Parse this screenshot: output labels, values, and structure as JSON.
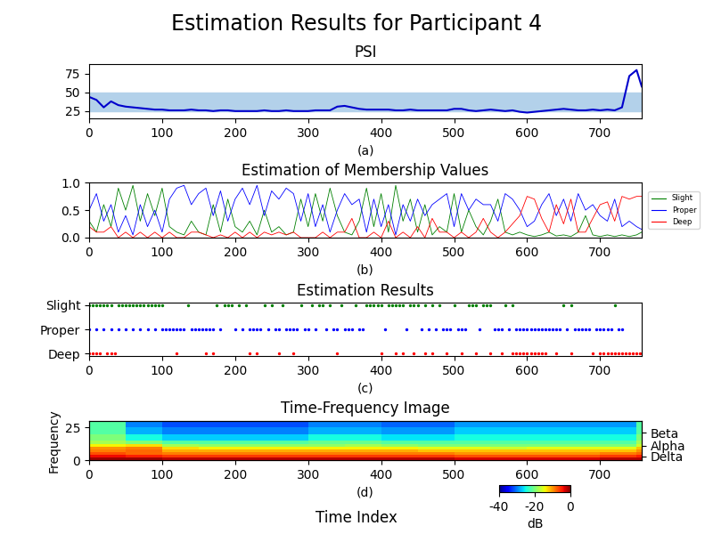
{
  "title": "Estimation Results for Participant 4",
  "xlabel": "Time Index",
  "chart_data": [
    {
      "type": "line",
      "title": "PSI",
      "xlabel": "(a)",
      "x": [
        0,
        10,
        20,
        30,
        40,
        50,
        60,
        70,
        80,
        90,
        100,
        110,
        120,
        130,
        140,
        150,
        160,
        170,
        180,
        190,
        200,
        210,
        220,
        230,
        240,
        250,
        260,
        270,
        280,
        290,
        300,
        310,
        320,
        330,
        340,
        350,
        360,
        370,
        380,
        390,
        400,
        410,
        420,
        430,
        440,
        450,
        460,
        470,
        480,
        490,
        500,
        510,
        520,
        530,
        540,
        550,
        560,
        570,
        580,
        590,
        600,
        610,
        620,
        630,
        640,
        650,
        660,
        670,
        680,
        690,
        700,
        710,
        720,
        730,
        740,
        750,
        757
      ],
      "values": [
        44,
        40,
        30,
        38,
        33,
        31,
        30,
        29,
        28,
        27,
        27,
        26,
        26,
        26,
        27,
        26,
        26,
        25,
        26,
        26,
        25,
        25,
        25,
        25,
        26,
        25,
        25,
        26,
        25,
        25,
        25,
        26,
        26,
        26,
        31,
        32,
        30,
        28,
        27,
        27,
        27,
        27,
        26,
        26,
        27,
        26,
        26,
        26,
        26,
        26,
        28,
        28,
        26,
        25,
        26,
        27,
        26,
        25,
        26,
        24,
        23,
        24,
        25,
        26,
        27,
        28,
        27,
        26,
        26,
        27,
        26,
        27,
        26,
        30,
        72,
        80,
        58
      ],
      "color": "#0000cc",
      "band": [
        25,
        50
      ],
      "xlim": [
        0,
        757
      ],
      "xticks": [
        0,
        100,
        200,
        300,
        400,
        500,
        600,
        700
      ],
      "ylim": [
        15,
        88
      ],
      "yticks": [
        25,
        50,
        75
      ]
    },
    {
      "type": "line",
      "title": "Estimation of Membership Values",
      "xlabel": "(b)",
      "x": [
        0,
        10,
        20,
        30,
        40,
        50,
        60,
        70,
        80,
        90,
        100,
        110,
        120,
        130,
        140,
        150,
        160,
        170,
        180,
        190,
        200,
        210,
        220,
        230,
        240,
        250,
        260,
        270,
        280,
        290,
        300,
        310,
        320,
        330,
        340,
        350,
        360,
        370,
        380,
        390,
        400,
        410,
        420,
        430,
        440,
        450,
        460,
        470,
        480,
        490,
        500,
        510,
        520,
        530,
        540,
        550,
        560,
        570,
        580,
        590,
        600,
        610,
        620,
        630,
        640,
        650,
        660,
        670,
        680,
        690,
        700,
        710,
        720,
        730,
        740,
        750,
        757
      ],
      "series": [
        {
          "name": "Slight",
          "color": "green",
          "values": [
            0.3,
            0.1,
            0.6,
            0.2,
            0.9,
            0.5,
            0.95,
            0.3,
            0.8,
            0.4,
            0.9,
            0.2,
            0.1,
            0.05,
            0.3,
            0.1,
            0.05,
            0.6,
            0.1,
            0.7,
            0.2,
            0.1,
            0.3,
            0.05,
            0.5,
            0.1,
            0.2,
            0.05,
            0.1,
            0.7,
            0.2,
            0.8,
            0.3,
            0.9,
            0.4,
            0.1,
            0.05,
            0.3,
            0.9,
            0.2,
            0.8,
            0.1,
            0.95,
            0.3,
            0.7,
            0.1,
            0.6,
            0.05,
            0.2,
            0.1,
            0.8,
            0.1,
            0.5,
            0.2,
            0.05,
            0.3,
            0.7,
            0.1,
            0.05,
            0.1,
            0.05,
            0.02,
            0.05,
            0.1,
            0.03,
            0.05,
            0.02,
            0.1,
            0.4,
            0.05,
            0.02,
            0.05,
            0.02,
            0.05,
            0.02,
            0.05,
            0.1
          ]
        },
        {
          "name": "Proper",
          "color": "blue",
          "values": [
            0.5,
            0.8,
            0.3,
            0.6,
            0.1,
            0.4,
            0.05,
            0.6,
            0.2,
            0.5,
            0.1,
            0.7,
            0.9,
            0.95,
            0.6,
            0.8,
            0.9,
            0.4,
            0.85,
            0.3,
            0.7,
            0.9,
            0.6,
            0.95,
            0.4,
            0.85,
            0.7,
            0.9,
            0.8,
            0.3,
            0.8,
            0.2,
            0.6,
            0.1,
            0.5,
            0.8,
            0.6,
            0.7,
            0.1,
            0.7,
            0.2,
            0.6,
            0.05,
            0.6,
            0.3,
            0.7,
            0.4,
            0.6,
            0.7,
            0.8,
            0.2,
            0.8,
            0.5,
            0.7,
            0.6,
            0.6,
            0.3,
            0.8,
            0.7,
            0.5,
            0.2,
            0.3,
            0.6,
            0.8,
            0.4,
            0.7,
            0.3,
            0.8,
            0.5,
            0.6,
            0.4,
            0.3,
            0.7,
            0.2,
            0.3,
            0.2,
            0.15
          ]
        },
        {
          "name": "Deep",
          "color": "red",
          "values": [
            0.2,
            0.1,
            0.1,
            0.2,
            0.0,
            0.1,
            0.0,
            0.1,
            0.0,
            0.1,
            0.0,
            0.1,
            0.0,
            0.0,
            0.1,
            0.1,
            0.05,
            0.0,
            0.05,
            0.0,
            0.1,
            0.0,
            0.1,
            0.0,
            0.1,
            0.05,
            0.1,
            0.05,
            0.1,
            0.0,
            0.0,
            0.0,
            0.1,
            0.0,
            0.1,
            0.1,
            0.35,
            0.0,
            0.0,
            0.1,
            0.0,
            0.3,
            0.0,
            0.1,
            0.0,
            0.2,
            0.0,
            0.35,
            0.1,
            0.1,
            0.0,
            0.1,
            0.0,
            0.1,
            0.35,
            0.1,
            0.0,
            0.1,
            0.25,
            0.4,
            0.75,
            0.7,
            0.35,
            0.1,
            0.6,
            0.25,
            0.7,
            0.1,
            0.1,
            0.35,
            0.6,
            0.65,
            0.3,
            0.75,
            0.7,
            0.75,
            0.75
          ]
        }
      ],
      "legend": "right",
      "xlim": [
        0,
        757
      ],
      "xticks": [
        0,
        100,
        200,
        300,
        400,
        500,
        600,
        700
      ],
      "ylim": [
        0,
        1
      ],
      "yticks": [
        {
          "value": 0,
          "label": "0.0"
        },
        {
          "value": 0.5,
          "label": "0.5"
        },
        {
          "value": 1,
          "label": "1.0"
        }
      ]
    },
    {
      "type": "scatter",
      "title": "Estimation Results",
      "xlabel": "(c)",
      "categories": [
        "Deep",
        "Proper",
        "Slight"
      ],
      "series": [
        {
          "name": "Slight",
          "color": "green",
          "x": [
            0,
            5,
            10,
            15,
            20,
            25,
            30,
            40,
            45,
            50,
            55,
            60,
            65,
            70,
            75,
            80,
            85,
            90,
            95,
            100,
            135,
            175,
            185,
            190,
            195,
            205,
            215,
            240,
            250,
            265,
            290,
            305,
            315,
            320,
            330,
            345,
            365,
            380,
            385,
            390,
            395,
            400,
            410,
            415,
            420,
            425,
            430,
            440,
            445,
            450,
            460,
            470,
            480,
            500,
            520,
            525,
            530,
            540,
            545,
            550,
            570,
            580,
            650,
            660,
            720
          ]
        },
        {
          "name": "Proper",
          "color": "blue",
          "x": [
            0,
            10,
            20,
            30,
            40,
            50,
            60,
            70,
            80,
            90,
            100,
            105,
            110,
            115,
            120,
            125,
            130,
            140,
            145,
            150,
            155,
            160,
            165,
            170,
            180,
            200,
            210,
            220,
            225,
            230,
            235,
            245,
            255,
            260,
            270,
            275,
            280,
            285,
            295,
            300,
            310,
            325,
            335,
            340,
            350,
            355,
            360,
            370,
            375,
            405,
            435,
            455,
            465,
            475,
            485,
            490,
            495,
            505,
            510,
            515,
            535,
            555,
            560,
            565,
            575,
            585,
            590,
            595,
            600,
            605,
            610,
            615,
            620,
            625,
            630,
            635,
            640,
            645,
            655,
            665,
            670,
            675,
            680,
            685,
            695,
            700,
            705,
            710,
            715,
            725,
            730
          ]
        },
        {
          "name": "Deep",
          "color": "red",
          "x": [
            0,
            5,
            10,
            15,
            25,
            30,
            35,
            120,
            160,
            170,
            220,
            230,
            260,
            280,
            340,
            400,
            420,
            430,
            445,
            460,
            470,
            490,
            510,
            530,
            550,
            565,
            580,
            585,
            590,
            595,
            600,
            605,
            610,
            615,
            620,
            625,
            640,
            660,
            690,
            700,
            705,
            710,
            715,
            720,
            725,
            730,
            735,
            740,
            745,
            750,
            755
          ]
        }
      ],
      "xlim": [
        0,
        757
      ],
      "xticks": [
        0,
        100,
        200,
        300,
        400,
        500,
        600,
        700
      ]
    },
    {
      "type": "heatmap",
      "title": "Time-Frequency Image",
      "xlabel": "(d)",
      "ylabel": "Frequency",
      "time_edges": [
        0,
        50,
        100,
        150,
        200,
        250,
        300,
        350,
        400,
        450,
        500,
        550,
        600,
        650,
        700,
        750,
        757
      ],
      "freq_edges": [
        0,
        2,
        4,
        6,
        8,
        10,
        12,
        15,
        20,
        25,
        30
      ],
      "cells": [
        [
          -1,
          -1,
          -2,
          -2,
          -2,
          -2,
          -2,
          -2,
          -2,
          -2,
          -3,
          -3,
          -3,
          -3,
          -2,
          -2
        ],
        [
          -4,
          -5,
          -6,
          -6,
          -6,
          -6,
          -6,
          -6,
          -6,
          -6,
          -7,
          -7,
          -7,
          -7,
          -6,
          -5
        ],
        [
          -7,
          -8,
          -9,
          -9,
          -9,
          -9,
          -9,
          -9,
          -9,
          -9,
          -10,
          -10,
          -10,
          -10,
          -9,
          -8
        ],
        [
          -9,
          -8,
          -11,
          -11,
          -11,
          -11,
          -11,
          -11,
          -11,
          -12,
          -12,
          -12,
          -12,
          -12,
          -12,
          -10
        ],
        [
          -10,
          -9,
          -13,
          -14,
          -14,
          -14,
          -14,
          -14,
          -14,
          -15,
          -15,
          -16,
          -15,
          -15,
          -15,
          -12
        ],
        [
          -14,
          -13,
          -18,
          -19,
          -19,
          -19,
          -19,
          -18,
          -19,
          -20,
          -20,
          -20,
          -20,
          -20,
          -20,
          -16
        ],
        [
          -18,
          -20,
          -22,
          -22,
          -22,
          -22,
          -21,
          -21,
          -22,
          -22,
          -22,
          -22,
          -22,
          -22,
          -22,
          -18
        ],
        [
          -20,
          -25,
          -27,
          -27,
          -27,
          -27,
          -25,
          -25,
          -26,
          -26,
          -25,
          -25,
          -25,
          -25,
          -25,
          -20
        ],
        [
          -22,
          -28,
          -30,
          -30,
          -30,
          -30,
          -28,
          -28,
          -29,
          -29,
          -27,
          -27,
          -27,
          -27,
          -27,
          -22
        ],
        [
          -22,
          -30,
          -32,
          -32,
          -32,
          -32,
          -30,
          -30,
          -31,
          -31,
          -29,
          -29,
          -29,
          -29,
          -29,
          -22
        ]
      ],
      "colorbar": {
        "range": [
          -40,
          0
        ],
        "ticks": [
          -40,
          -20,
          0
        ],
        "label": "dB"
      },
      "xlim": [
        0,
        757
      ],
      "xticks": [
        0,
        100,
        200,
        300,
        400,
        500,
        600,
        700
      ],
      "ylim": [
        0,
        30
      ],
      "yticks": [
        0,
        25
      ],
      "y2ticks": [
        {
          "value": 21,
          "label": "Beta"
        },
        {
          "value": 11,
          "label": "Alpha"
        },
        {
          "value": 3,
          "label": "Delta"
        }
      ]
    }
  ]
}
